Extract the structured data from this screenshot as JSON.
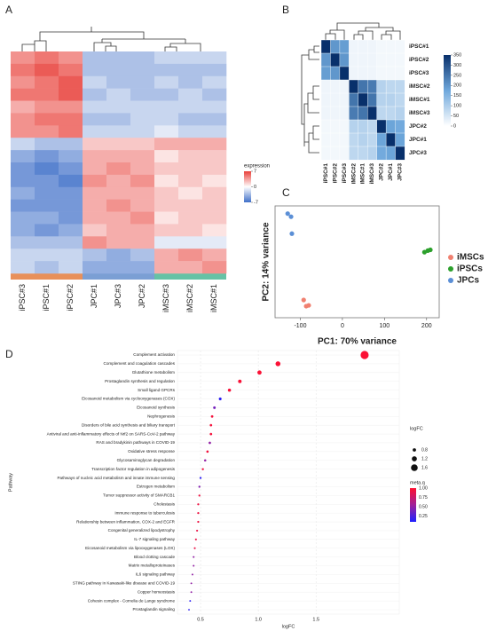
{
  "chart_data": [
    {
      "type": "heatmap",
      "label": "A",
      "categories": [
        "iPSC#3",
        "iPSC#1",
        "iPSC#2",
        "JPC#1",
        "JPC#3",
        "JPC#2",
        "iMSC#3",
        "iMSC#2",
        "iMSC#1"
      ],
      "values": [
        [
          4,
          5,
          4,
          -3,
          -3,
          -3,
          -2,
          -2,
          -2
        ],
        [
          5,
          6,
          5,
          -3,
          -3,
          -3,
          -3,
          -3,
          -3
        ],
        [
          4,
          5,
          6,
          -2,
          -3,
          -3,
          -2,
          -3,
          -2
        ],
        [
          5,
          5,
          6,
          -3,
          -2,
          -3,
          -3,
          -2,
          -3
        ],
        [
          3,
          4,
          4,
          -2,
          -2,
          -2,
          -2,
          -2,
          -2
        ],
        [
          4,
          5,
          5,
          -3,
          -3,
          -2,
          -2,
          -3,
          -3
        ],
        [
          4,
          4,
          5,
          -2,
          -2,
          -2,
          -1,
          -2,
          -2
        ],
        [
          -2,
          -3,
          -3,
          2,
          2,
          2,
          3,
          3,
          3
        ],
        [
          -4,
          -5,
          -4,
          3,
          3,
          3,
          1,
          2,
          2
        ],
        [
          -5,
          -6,
          -5,
          3,
          4,
          3,
          2,
          2,
          2
        ],
        [
          -5,
          -5,
          -6,
          4,
          3,
          4,
          1,
          2,
          1
        ],
        [
          -4,
          -5,
          -5,
          3,
          3,
          3,
          2,
          1,
          2
        ],
        [
          -5,
          -5,
          -5,
          3,
          4,
          3,
          2,
          2,
          2
        ],
        [
          -4,
          -4,
          -5,
          3,
          3,
          4,
          1,
          2,
          2
        ],
        [
          -4,
          -5,
          -4,
          2,
          3,
          3,
          2,
          2,
          1
        ],
        [
          -3,
          -3,
          -3,
          4,
          3,
          3,
          -1,
          -1,
          -1
        ],
        [
          -2,
          -2,
          -2,
          -3,
          -4,
          -3,
          3,
          4,
          3
        ],
        [
          -2,
          -3,
          -2,
          -4,
          -4,
          -4,
          3,
          3,
          4
        ]
      ],
      "zlim": [
        -7,
        7
      ],
      "colors": [
        "#3f6fc8",
        "#ffffff",
        "#e8403a"
      ],
      "legend_title": "expression",
      "legend_ticks": [
        7,
        0,
        -7
      ]
    },
    {
      "type": "heatmap",
      "label": "B",
      "rows": [
        "iPSC#1",
        "iPSC#2",
        "iPSC#3",
        "iMSC#2",
        "iMSC#1",
        "iMSC#3",
        "JPC#2",
        "JPC#1",
        "JPC#3"
      ],
      "categories": [
        "iPSC#1",
        "iPSC#2",
        "iPSC#3",
        "iMSC#2",
        "iMSC#1",
        "iMSC#3",
        "JPC#2",
        "JPC#1",
        "JPC#3"
      ],
      "values": [
        [
          350,
          200,
          190,
          20,
          20,
          20,
          15,
          15,
          15
        ],
        [
          200,
          350,
          200,
          20,
          20,
          20,
          15,
          15,
          15
        ],
        [
          190,
          200,
          350,
          20,
          20,
          20,
          15,
          15,
          15
        ],
        [
          20,
          20,
          20,
          350,
          250,
          240,
          90,
          80,
          80
        ],
        [
          20,
          20,
          20,
          250,
          350,
          250,
          90,
          90,
          80
        ],
        [
          20,
          20,
          20,
          240,
          250,
          350,
          80,
          80,
          90
        ],
        [
          15,
          15,
          15,
          90,
          90,
          80,
          350,
          180,
          170
        ],
        [
          15,
          15,
          15,
          80,
          90,
          80,
          180,
          350,
          180
        ],
        [
          15,
          15,
          15,
          80,
          80,
          90,
          170,
          180,
          350
        ]
      ],
      "zlim": [
        0,
        350
      ],
      "colors": [
        "#ffffff",
        "#6fa8dc",
        "#08306b"
      ],
      "legend_ticks": [
        0,
        50,
        100,
        150,
        200,
        250,
        300,
        350
      ]
    },
    {
      "type": "scatter",
      "label": "C",
      "xlabel": "PC1: 70% variance",
      "ylabel": "PC2: 14% variance",
      "xlim": [
        -160,
        230
      ],
      "ylim": [
        -75,
        70
      ],
      "xticks": [
        -100,
        0,
        100,
        200
      ],
      "series": [
        {
          "name": "iMSCs",
          "color": "#f08070",
          "x": [
            -92,
            -86,
            -80
          ],
          "values": [
            -52,
            -60,
            -59
          ]
        },
        {
          "name": "iPSCs",
          "color": "#2ca02c",
          "x": [
            195,
            203,
            209
          ],
          "values": [
            10,
            12,
            13
          ]
        },
        {
          "name": "JPCs",
          "color": "#5b8fd6",
          "x": [
            -130,
            -122,
            -120
          ],
          "values": [
            60,
            56,
            34
          ]
        }
      ]
    },
    {
      "type": "dot",
      "label": "D",
      "xlabel": "logFC",
      "ylabel": "Pathway",
      "categories": [
        "Complement activation",
        "Complement and coagulation cascades",
        "Glutathione metabolism",
        "Prostaglandin synthesis and regulation",
        "Small ligand GPCRs",
        "Eicosanoid metabolism via cyclooxygenases (COX)",
        "Eicosanoid synthesis",
        "Nephrogenesis",
        "Disorders of bile acid synthesis and biliary transport",
        "Antiviral and anti-inflammatory effects of Nrf2 on SARS-CoV-2 pathway",
        "RAS and bradykinin pathways in COVID-19",
        "Oxidative stress response",
        "Glycosaminoglycan degradation",
        "Transcription factor regulation in adipogenesis",
        "Pathways of nucleic acid metabolism and innate immune sensing",
        "Estrogen metabolism",
        "Tumor suppressor activity of SMARCB1",
        "Cholestasis",
        "Immune response to tuberculosis",
        "Relationship between inflammation, COX-2 and EGFR",
        "Congenital generalized lipodystrophy",
        "IL-7 signaling pathway",
        "Eicosanoid metabolism via lipooxygenases (LOX)",
        "Blood clotting cascade",
        "Matrix metalloproteinases",
        "IL6 signaling pathway",
        "STING pathway in Kawasaki-like disease and COVID-19",
        "Copper homeostasis",
        "Cohesin complex - Cornelia de Lange syndrome",
        "Prostaglandin signaling"
      ],
      "values": [
        1.92,
        1.17,
        1.01,
        0.84,
        0.75,
        0.67,
        0.62,
        0.6,
        0.59,
        0.59,
        0.58,
        0.56,
        0.54,
        0.52,
        0.5,
        0.49,
        0.49,
        0.48,
        0.48,
        0.48,
        0.47,
        0.46,
        0.45,
        0.44,
        0.44,
        0.43,
        0.42,
        0.42,
        0.41,
        0.4
      ],
      "color_values": [
        0.12,
        0.12,
        0.12,
        0.13,
        0.14,
        0.95,
        0.7,
        0.15,
        0.15,
        0.15,
        0.6,
        0.16,
        0.6,
        0.17,
        0.95,
        0.65,
        0.18,
        0.18,
        0.18,
        0.18,
        0.2,
        0.2,
        0.2,
        0.6,
        0.6,
        0.6,
        0.6,
        0.6,
        0.95,
        0.95
      ],
      "xlim": [
        0.3,
        2.22
      ],
      "xticks": [
        0.5,
        {
          "value": 1,
          "label": "1.0"
        },
        1.5
      ],
      "size_title": "logFC",
      "size_ticks": [
        0.8,
        1.2,
        1.6
      ],
      "color_title": "meta.q",
      "clim": [
        0.1,
        1
      ],
      "colors": [
        "#ff1030",
        "#a0209a",
        "#1f20ff"
      ],
      "color_ticks": [
        {
          "value": 1,
          "label": "1.00"
        },
        0.75,
        {
          "value": 0.5,
          "label": "0.50"
        },
        0.25
      ]
    }
  ]
}
